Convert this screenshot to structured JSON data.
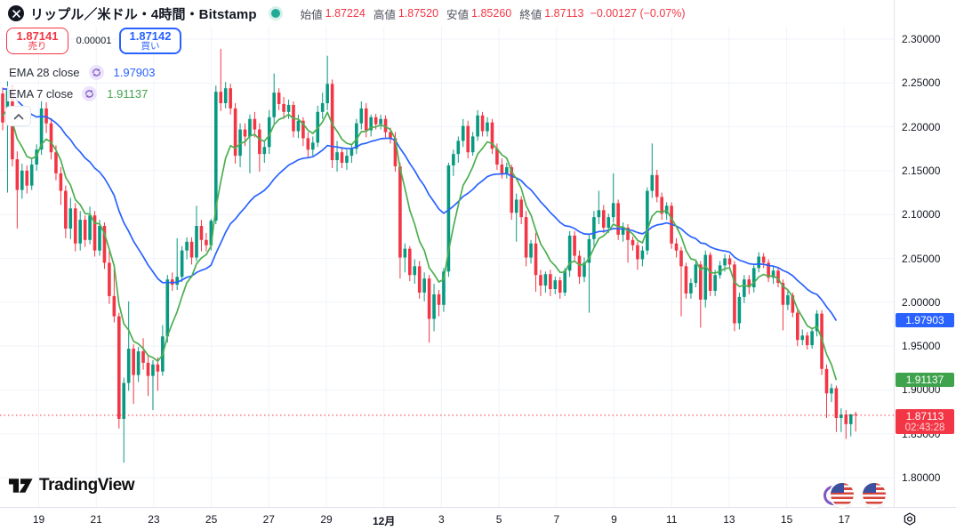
{
  "header": {
    "title": "リップル／米ドル・4時間・Bitstamp",
    "ohlc": {
      "open_label": "始値",
      "open": "1.87224",
      "high_label": "高値",
      "high": "1.87520",
      "low_label": "安値",
      "low": "1.85260",
      "close_label": "終値",
      "close": "1.87113",
      "change": "−0.00127 (−0.07%)"
    }
  },
  "trade_panel": {
    "sell_price": "1.87141",
    "sell_label": "売り",
    "spread": "0.00001",
    "buy_price": "1.87142",
    "buy_label": "買い"
  },
  "indicators": [
    {
      "name": "EMA 28 close",
      "value": "1.97903",
      "color": "#2962ff"
    },
    {
      "name": "EMA 7 close",
      "value": "1.91137",
      "color": "#3fa34d"
    }
  ],
  "watermark": "TradingView",
  "chart_data": {
    "type": "candlestick",
    "symbol": "リップル／米ドル",
    "interval": "4時間",
    "exchange": "Bitstamp",
    "ylim": [
      1.8,
      2.3
    ],
    "y_ticks": [
      "2.30000",
      "2.25000",
      "2.20000",
      "2.15000",
      "2.10000",
      "2.05000",
      "2.00000",
      "1.95000",
      "1.90000",
      "1.85000",
      "1.80000"
    ],
    "x_ticks": [
      {
        "label": "19"
      },
      {
        "label": "21"
      },
      {
        "label": "23"
      },
      {
        "label": "25"
      },
      {
        "label": "27"
      },
      {
        "label": "29"
      },
      {
        "label": "12月",
        "bold": true
      },
      {
        "label": "3"
      },
      {
        "label": "5"
      },
      {
        "label": "7"
      },
      {
        "label": "9"
      },
      {
        "label": "11"
      },
      {
        "label": "13"
      },
      {
        "label": "15"
      },
      {
        "label": "17"
      }
    ],
    "up_color": "#089981",
    "down_color": "#f23645",
    "price_line": {
      "value": 1.87113,
      "color": "#f23645"
    },
    "last_value_labels": [
      {
        "text": "1.97903",
        "price": 1.97903,
        "color": "#2962ff"
      },
      {
        "text": "1.91137",
        "price": 1.91137,
        "color": "#3fa34d"
      },
      {
        "text": "1.87113",
        "price": 1.87113,
        "color": "#f23645",
        "countdown": "02:43:28"
      }
    ],
    "ema": [
      {
        "period": 28,
        "seed": 2.246,
        "last": 1.97903,
        "color": "#2962ff"
      },
      {
        "period": 7,
        "seed": 2.215,
        "last": 1.91137,
        "color": "#4caf50"
      }
    ],
    "candles": [
      [
        2.238,
        2.245,
        2.196,
        2.205
      ],
      [
        2.205,
        2.252,
        2.125,
        2.242
      ],
      [
        2.242,
        2.247,
        2.155,
        2.163
      ],
      [
        2.163,
        2.172,
        2.084,
        2.128
      ],
      [
        2.128,
        2.158,
        2.118,
        2.15
      ],
      [
        2.15,
        2.156,
        2.124,
        2.133
      ],
      [
        2.133,
        2.163,
        2.128,
        2.157
      ],
      [
        2.157,
        2.18,
        2.15,
        2.174
      ],
      [
        2.174,
        2.231,
        2.168,
        2.221
      ],
      [
        2.221,
        2.228,
        2.193,
        2.204
      ],
      [
        2.204,
        2.21,
        2.163,
        2.171
      ],
      [
        2.171,
        2.179,
        2.139,
        2.147
      ],
      [
        2.147,
        2.154,
        2.111,
        2.127
      ],
      [
        2.127,
        2.133,
        2.073,
        2.084
      ],
      [
        2.084,
        2.119,
        2.072,
        2.107
      ],
      [
        2.107,
        2.113,
        2.058,
        2.067
      ],
      [
        2.067,
        2.104,
        2.059,
        2.094
      ],
      [
        2.094,
        2.099,
        2.063,
        2.071
      ],
      [
        2.071,
        2.109,
        2.066,
        2.099
      ],
      [
        2.099,
        2.104,
        2.052,
        2.059
      ],
      [
        2.059,
        2.094,
        2.053,
        2.087
      ],
      [
        2.087,
        2.091,
        2.038,
        2.045
      ],
      [
        2.045,
        2.059,
        1.998,
        2.007
      ],
      [
        2.007,
        2.039,
        1.977,
        1.984
      ],
      [
        1.984,
        1.988,
        1.856,
        1.867
      ],
      [
        1.867,
        1.914,
        1.817,
        1.908
      ],
      [
        1.908,
        2.001,
        1.899,
        1.947
      ],
      [
        1.947,
        1.952,
        1.884,
        1.917
      ],
      [
        1.917,
        1.949,
        1.909,
        1.944
      ],
      [
        1.944,
        1.959,
        1.923,
        1.931
      ],
      [
        1.931,
        1.939,
        1.893,
        1.916
      ],
      [
        1.916,
        1.934,
        1.877,
        1.929
      ],
      [
        1.929,
        1.937,
        1.899,
        1.921
      ],
      [
        1.921,
        1.974,
        1.916,
        1.961
      ],
      [
        1.961,
        2.031,
        1.954,
        2.026
      ],
      [
        2.026,
        2.034,
        2.013,
        2.02
      ],
      [
        2.02,
        2.073,
        2.014,
        2.029
      ],
      [
        2.029,
        2.064,
        2.023,
        2.059
      ],
      [
        2.059,
        2.074,
        2.049,
        2.069
      ],
      [
        2.069,
        2.074,
        2.043,
        2.051
      ],
      [
        2.051,
        2.11,
        2.047,
        2.087
      ],
      [
        2.087,
        2.094,
        2.058,
        2.071
      ],
      [
        2.071,
        2.079,
        2.058,
        2.065
      ],
      [
        2.065,
        2.095,
        2.059,
        2.093
      ],
      [
        2.093,
        2.247,
        2.089,
        2.24
      ],
      [
        2.24,
        2.289,
        2.218,
        2.227
      ],
      [
        2.227,
        2.251,
        2.221,
        2.244
      ],
      [
        2.244,
        2.249,
        2.214,
        2.221
      ],
      [
        2.221,
        2.227,
        2.158,
        2.167
      ],
      [
        2.167,
        2.204,
        2.154,
        2.197
      ],
      [
        2.197,
        2.204,
        2.178,
        2.189
      ],
      [
        2.189,
        2.214,
        2.147,
        2.209
      ],
      [
        2.209,
        2.217,
        2.188,
        2.197
      ],
      [
        2.197,
        2.204,
        2.149,
        2.169
      ],
      [
        2.169,
        2.184,
        2.159,
        2.177
      ],
      [
        2.177,
        2.219,
        2.169,
        2.211
      ],
      [
        2.211,
        2.261,
        2.204,
        2.239
      ],
      [
        2.239,
        2.244,
        2.219,
        2.226
      ],
      [
        2.226,
        2.234,
        2.209,
        2.217
      ],
      [
        2.217,
        2.231,
        2.209,
        2.225
      ],
      [
        2.225,
        2.229,
        2.188,
        2.195
      ],
      [
        2.195,
        2.214,
        2.187,
        2.207
      ],
      [
        2.207,
        2.211,
        2.178,
        2.187
      ],
      [
        2.187,
        2.194,
        2.164,
        2.174
      ],
      [
        2.174,
        2.189,
        2.167,
        2.182
      ],
      [
        2.182,
        2.224,
        2.177,
        2.217
      ],
      [
        2.217,
        2.239,
        2.209,
        2.227
      ],
      [
        2.227,
        2.281,
        2.219,
        2.249
      ],
      [
        2.249,
        2.254,
        2.153,
        2.162
      ],
      [
        2.162,
        2.184,
        2.149,
        2.171
      ],
      [
        2.171,
        2.177,
        2.153,
        2.159
      ],
      [
        2.159,
        2.174,
        2.151,
        2.167
      ],
      [
        2.167,
        2.179,
        2.159,
        2.175
      ],
      [
        2.175,
        2.209,
        2.169,
        2.204
      ],
      [
        2.204,
        2.229,
        2.197,
        2.221
      ],
      [
        2.221,
        2.227,
        2.188,
        2.196
      ],
      [
        2.196,
        2.214,
        2.189,
        2.211
      ],
      [
        2.211,
        2.215,
        2.197,
        2.203
      ],
      [
        2.203,
        2.214,
        2.197,
        2.209
      ],
      [
        2.209,
        2.213,
        2.188,
        2.194
      ],
      [
        2.194,
        2.199,
        2.181,
        2.187
      ],
      [
        2.187,
        2.194,
        2.149,
        2.155
      ],
      [
        2.155,
        2.159,
        2.027,
        2.051
      ],
      [
        2.051,
        2.067,
        2.034,
        2.061
      ],
      [
        2.061,
        2.064,
        2.024,
        2.031
      ],
      [
        2.031,
        2.049,
        2.021,
        2.041
      ],
      [
        2.041,
        2.047,
        2.004,
        2.011
      ],
      [
        2.011,
        2.034,
        2.001,
        2.027
      ],
      [
        2.027,
        2.031,
        1.954,
        1.981
      ],
      [
        1.981,
        2.021,
        1.967,
        2.009
      ],
      [
        2.009,
        2.014,
        1.984,
        1.997
      ],
      [
        1.997,
        2.039,
        1.989,
        2.035
      ],
      [
        2.035,
        2.159,
        2.029,
        2.156
      ],
      [
        2.156,
        2.174,
        2.144,
        2.169
      ],
      [
        2.169,
        2.189,
        2.159,
        2.184
      ],
      [
        2.184,
        2.209,
        2.177,
        2.201
      ],
      [
        2.201,
        2.207,
        2.164,
        2.171
      ],
      [
        2.171,
        2.194,
        2.167,
        2.189
      ],
      [
        2.189,
        2.219,
        2.184,
        2.213
      ],
      [
        2.213,
        2.217,
        2.189,
        2.195
      ],
      [
        2.195,
        2.211,
        2.189,
        2.205
      ],
      [
        2.205,
        2.209,
        2.169,
        2.175
      ],
      [
        2.175,
        2.181,
        2.151,
        2.157
      ],
      [
        2.157,
        2.164,
        2.141,
        2.147
      ],
      [
        2.147,
        2.159,
        2.141,
        2.154
      ],
      [
        2.154,
        2.157,
        2.094,
        2.102
      ],
      [
        2.102,
        2.124,
        2.069,
        2.117
      ],
      [
        2.117,
        2.121,
        2.089,
        2.097
      ],
      [
        2.097,
        2.104,
        2.041,
        2.051
      ],
      [
        2.051,
        2.071,
        2.044,
        2.067
      ],
      [
        2.067,
        2.079,
        2.012,
        2.031
      ],
      [
        2.031,
        2.037,
        2.007,
        2.019
      ],
      [
        2.019,
        2.035,
        2.011,
        2.032
      ],
      [
        2.032,
        2.037,
        2.007,
        2.015
      ],
      [
        2.015,
        2.029,
        2.009,
        2.025
      ],
      [
        2.025,
        2.029,
        2.004,
        2.011
      ],
      [
        2.011,
        2.039,
        2.007,
        2.036
      ],
      [
        2.036,
        2.081,
        2.029,
        2.076
      ],
      [
        2.076,
        2.081,
        2.047,
        2.053
      ],
      [
        2.053,
        2.059,
        2.021,
        2.029
      ],
      [
        2.029,
        2.051,
        2.023,
        2.045
      ],
      [
        2.045,
        2.077,
        1.988,
        2.072
      ],
      [
        2.072,
        2.104,
        2.064,
        2.097
      ],
      [
        2.097,
        2.127,
        2.089,
        2.105
      ],
      [
        2.105,
        2.111,
        2.079,
        2.085
      ],
      [
        2.085,
        2.101,
        2.079,
        2.097
      ],
      [
        2.097,
        2.147,
        2.091,
        2.113
      ],
      [
        2.113,
        2.117,
        2.071,
        2.077
      ],
      [
        2.077,
        2.091,
        2.069,
        2.085
      ],
      [
        2.085,
        2.089,
        2.045,
        2.071
      ],
      [
        2.071,
        2.075,
        2.059,
        2.065
      ],
      [
        2.065,
        2.069,
        2.037,
        2.049
      ],
      [
        2.049,
        2.064,
        2.041,
        2.059
      ],
      [
        2.059,
        2.131,
        2.054,
        2.127
      ],
      [
        2.127,
        2.181,
        2.119,
        2.145
      ],
      [
        2.145,
        2.151,
        2.114,
        2.12
      ],
      [
        2.12,
        2.125,
        2.094,
        2.101
      ],
      [
        2.101,
        2.114,
        2.094,
        2.11
      ],
      [
        2.11,
        2.114,
        2.061,
        2.067
      ],
      [
        2.067,
        2.073,
        2.051,
        2.059
      ],
      [
        2.059,
        2.063,
        1.984,
        2.041
      ],
      [
        2.041,
        2.045,
        2.004,
        2.01
      ],
      [
        2.01,
        2.027,
        2.004,
        2.022
      ],
      [
        2.022,
        2.047,
        2.017,
        2.043
      ],
      [
        2.043,
        2.047,
        1.971,
        2.003
      ],
      [
        2.003,
        2.059,
        1.994,
        2.054
      ],
      [
        2.054,
        2.057,
        2.007,
        2.013
      ],
      [
        2.013,
        2.037,
        2.007,
        2.031
      ],
      [
        2.031,
        2.047,
        2.027,
        2.042
      ],
      [
        2.042,
        2.055,
        2.035,
        2.05
      ],
      [
        2.05,
        2.054,
        2.037,
        2.043
      ],
      [
        2.043,
        2.047,
        1.967,
        1.976
      ],
      [
        1.976,
        2.011,
        1.969,
        2.006
      ],
      [
        2.006,
        2.031,
        1.999,
        2.026
      ],
      [
        2.026,
        2.031,
        2.009,
        2.017
      ],
      [
        2.017,
        2.043,
        2.011,
        2.039
      ],
      [
        2.039,
        2.057,
        2.034,
        2.052
      ],
      [
        2.052,
        2.056,
        2.039,
        2.045
      ],
      [
        2.045,
        2.049,
        2.023,
        2.028
      ],
      [
        2.028,
        2.041,
        2.021,
        2.036
      ],
      [
        2.036,
        2.04,
        2.017,
        2.022
      ],
      [
        2.022,
        2.026,
        1.968,
        1.997
      ],
      [
        1.997,
        2.013,
        1.991,
        2.008
      ],
      [
        2.008,
        2.011,
        1.983,
        1.988
      ],
      [
        1.988,
        1.993,
        1.95,
        1.957
      ],
      [
        1.957,
        1.969,
        1.951,
        1.962
      ],
      [
        1.962,
        1.966,
        1.946,
        1.951
      ],
      [
        1.951,
        1.971,
        1.947,
        1.967
      ],
      [
        1.967,
        1.991,
        1.961,
        1.987
      ],
      [
        1.987,
        1.991,
        1.917,
        1.924
      ],
      [
        1.924,
        1.929,
        1.868,
        1.896
      ],
      [
        1.896,
        1.907,
        1.886,
        1.902
      ],
      [
        1.902,
        1.905,
        1.852,
        1.868
      ],
      [
        1.868,
        1.879,
        1.852,
        1.872
      ],
      [
        1.872,
        1.877,
        1.844,
        1.861
      ],
      [
        1.861,
        1.873,
        1.847,
        1.872
      ],
      [
        1.87224,
        1.8752,
        1.8526,
        1.87113
      ]
    ]
  }
}
